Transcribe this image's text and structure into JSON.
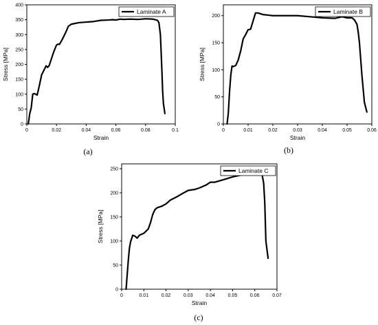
{
  "chart_data": [
    {
      "type": "line",
      "panel_label": "(a)",
      "xlabel": "Strain",
      "ylabel": "Stress [MPa]",
      "xlim": [
        0,
        0.1
      ],
      "ylim": [
        0,
        400
      ],
      "x_ticks": [
        0,
        0.02,
        0.04,
        0.06,
        0.08,
        0.1
      ],
      "x_tick_labels": [
        "0",
        "0.02",
        "0.04",
        "0.06",
        "0.08",
        "0.1"
      ],
      "y_ticks": [
        0,
        50,
        100,
        150,
        200,
        250,
        300,
        350,
        400
      ],
      "y_tick_labels": [
        "0",
        "50",
        "100",
        "150",
        "200",
        "250",
        "300",
        "350",
        "400"
      ],
      "legend_position": "top-right",
      "series": [
        {
          "name": "Laminate A",
          "x": [
            0.001,
            0.002,
            0.003,
            0.004,
            0.005,
            0.006,
            0.007,
            0.0085,
            0.01,
            0.012,
            0.013,
            0.014,
            0.015,
            0.016,
            0.018,
            0.02,
            0.021,
            0.022,
            0.024,
            0.026,
            0.028,
            0.03,
            0.032,
            0.035,
            0.04,
            0.045,
            0.05,
            0.055,
            0.058,
            0.06,
            0.063,
            0.065,
            0.07,
            0.075,
            0.08,
            0.085,
            0.088,
            0.089,
            0.09,
            0.0905,
            0.091,
            0.0915,
            0.092,
            0.093
          ],
          "y": [
            0,
            35,
            55,
            100,
            102,
            100,
            97,
            130,
            165,
            185,
            195,
            190,
            195,
            210,
            240,
            265,
            268,
            267,
            285,
            305,
            328,
            335,
            337,
            340,
            342,
            344,
            348,
            349,
            350,
            349,
            352,
            351,
            352,
            351,
            353,
            352,
            348,
            340,
            300,
            240,
            180,
            110,
            70,
            35
          ]
        }
      ]
    },
    {
      "type": "line",
      "panel_label": "(b)",
      "xlabel": "Strain",
      "ylabel": "Stress [MPa]",
      "xlim": [
        0,
        0.06
      ],
      "ylim": [
        0,
        220
      ],
      "x_ticks": [
        0,
        0.01,
        0.02,
        0.03,
        0.04,
        0.05,
        0.06
      ],
      "x_tick_labels": [
        "0",
        "0.01",
        "0.02",
        "0.03",
        "0.04",
        "0.05",
        "0.06"
      ],
      "y_ticks": [
        0,
        50,
        100,
        150,
        200
      ],
      "y_tick_labels": [
        "0",
        "50",
        "100",
        "150",
        "200"
      ],
      "legend_position": "top-right",
      "series": [
        {
          "name": "Laminate B",
          "x": [
            0.0015,
            0.002,
            0.0025,
            0.003,
            0.0035,
            0.004,
            0.005,
            0.006,
            0.007,
            0.008,
            0.009,
            0.01,
            0.011,
            0.012,
            0.013,
            0.014,
            0.016,
            0.018,
            0.02,
            0.025,
            0.03,
            0.035,
            0.04,
            0.045,
            0.048,
            0.05,
            0.052,
            0.053,
            0.054,
            0.0545,
            0.055,
            0.0555,
            0.056,
            0.057,
            0.058
          ],
          "y": [
            0,
            20,
            60,
            90,
            107,
            106,
            108,
            118,
            135,
            157,
            165,
            174,
            175,
            190,
            205,
            205,
            202,
            201,
            200,
            200,
            200,
            198,
            196,
            195,
            198,
            196,
            196,
            192,
            184,
            170,
            150,
            120,
            90,
            40,
            22
          ]
        }
      ]
    },
    {
      "type": "line",
      "panel_label": "(c)",
      "xlabel": "Strain",
      "ylabel": "Stress [MPa]",
      "xlim": [
        0,
        0.07
      ],
      "ylim": [
        0,
        260
      ],
      "x_ticks": [
        0,
        0.01,
        0.02,
        0.03,
        0.04,
        0.05,
        0.06,
        0.07
      ],
      "x_tick_labels": [
        "0",
        "0.01",
        "0.02",
        "0.03",
        "0.04",
        "0.05",
        "0.06",
        "0.07"
      ],
      "y_ticks": [
        0,
        50,
        100,
        150,
        200,
        250
      ],
      "y_tick_labels": [
        "0",
        "50",
        "100",
        "150",
        "200",
        "250"
      ],
      "legend_position": "top-right",
      "series": [
        {
          "name": "Laminate C",
          "x": [
            0.002,
            0.0025,
            0.003,
            0.0035,
            0.004,
            0.005,
            0.006,
            0.007,
            0.008,
            0.01,
            0.012,
            0.013,
            0.014,
            0.015,
            0.016,
            0.018,
            0.02,
            0.022,
            0.025,
            0.028,
            0.03,
            0.033,
            0.035,
            0.038,
            0.04,
            0.042,
            0.045,
            0.05,
            0.055,
            0.06,
            0.062,
            0.063,
            0.064,
            0.0645,
            0.065,
            0.066
          ],
          "y": [
            0,
            30,
            60,
            85,
            98,
            112,
            110,
            106,
            112,
            116,
            125,
            138,
            155,
            165,
            169,
            172,
            177,
            185,
            192,
            200,
            205,
            207,
            210,
            216,
            222,
            222,
            226,
            233,
            238,
            244,
            247,
            245,
            220,
            180,
            100,
            64
          ]
        }
      ]
    }
  ]
}
